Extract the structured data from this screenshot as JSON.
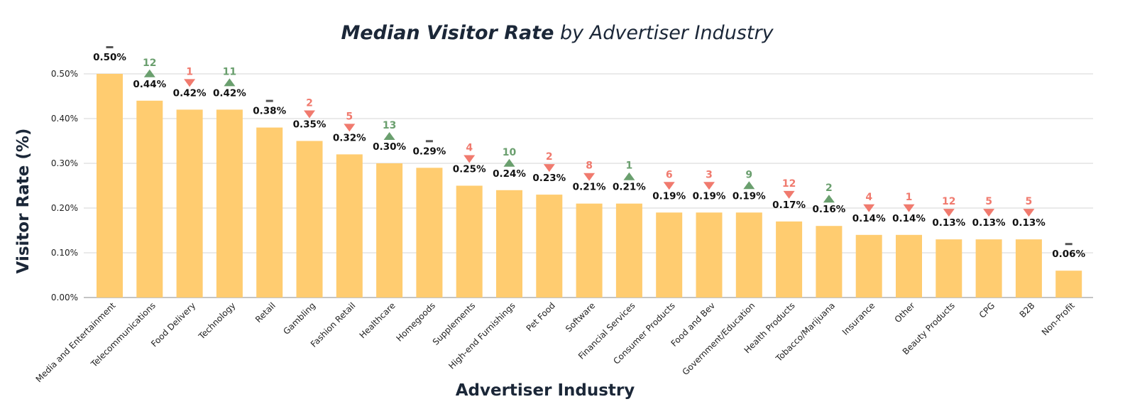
{
  "chart_data": {
    "type": "bar",
    "title_bold": "Median Visitor Rate",
    "title_rest": " by Advertiser Industry",
    "xlabel": "Advertiser Industry",
    "ylabel": "Visitor  Rate (%)",
    "ylim": [
      0,
      0.5
    ],
    "yticks": [
      0,
      0.1,
      0.2,
      0.3,
      0.4,
      0.5
    ],
    "ytick_labels": [
      "0.00%",
      "0.10%",
      "0.20%",
      "0.30%",
      "0.40%",
      "0.50%"
    ],
    "grid": true,
    "categories": [
      "Media and Entertainment",
      "Telecommunications",
      "Food Delivery",
      "Technology",
      "Retail",
      "Gambling",
      "Fashion Retail",
      "Healthcare",
      "Homegoods",
      "Supplements",
      "High-end Furnishings",
      "Pet Food",
      "Software",
      "Financial Services",
      "Consumer Products",
      "Food and Bev",
      "Government/Education",
      "Health Products",
      "Tobacco/Marijuana",
      "Insurance",
      "Other",
      "Beauty Products",
      "CPG",
      "B2B",
      "Non-Profit"
    ],
    "values": [
      0.5,
      0.44,
      0.42,
      0.42,
      0.38,
      0.35,
      0.32,
      0.3,
      0.29,
      0.25,
      0.24,
      0.23,
      0.21,
      0.21,
      0.19,
      0.19,
      0.19,
      0.17,
      0.16,
      0.14,
      0.14,
      0.13,
      0.13,
      0.13,
      0.06
    ],
    "value_labels": [
      "0.50%",
      "0.44%",
      "0.42%",
      "0.42%",
      "0.38%",
      "0.35%",
      "0.32%",
      "0.30%",
      "0.29%",
      "0.25%",
      "0.24%",
      "0.23%",
      "0.21%",
      "0.21%",
      "0.19%",
      "0.19%",
      "0.19%",
      "0.17%",
      "0.16%",
      "0.14%",
      "0.14%",
      "0.13%",
      "0.13%",
      "0.13%",
      "0.06%"
    ],
    "rank_change": [
      {
        "dir": "same",
        "num": ""
      },
      {
        "dir": "up",
        "num": "12"
      },
      {
        "dir": "down",
        "num": "1"
      },
      {
        "dir": "up",
        "num": "11"
      },
      {
        "dir": "same",
        "num": ""
      },
      {
        "dir": "down",
        "num": "2"
      },
      {
        "dir": "down",
        "num": "5"
      },
      {
        "dir": "up",
        "num": "13"
      },
      {
        "dir": "same",
        "num": ""
      },
      {
        "dir": "down",
        "num": "4"
      },
      {
        "dir": "up",
        "num": "10"
      },
      {
        "dir": "down",
        "num": "2"
      },
      {
        "dir": "down",
        "num": "8"
      },
      {
        "dir": "up",
        "num": "1"
      },
      {
        "dir": "down",
        "num": "6"
      },
      {
        "dir": "down",
        "num": "3"
      },
      {
        "dir": "up",
        "num": "9"
      },
      {
        "dir": "down",
        "num": "12"
      },
      {
        "dir": "up",
        "num": "2"
      },
      {
        "dir": "down",
        "num": "4"
      },
      {
        "dir": "down",
        "num": "1"
      },
      {
        "dir": "down",
        "num": "12"
      },
      {
        "dir": "down",
        "num": "5"
      },
      {
        "dir": "down",
        "num": "5"
      },
      {
        "dir": "same",
        "num": ""
      }
    ],
    "colors": {
      "bar": "#FFCC70",
      "up": "#6A9F6E",
      "down": "#F07A6E",
      "same": "#555555",
      "title": "#1B2738",
      "grid": "#D5D5D5",
      "text": "#111111"
    }
  }
}
